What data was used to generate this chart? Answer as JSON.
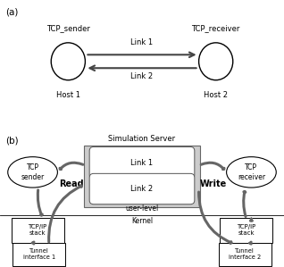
{
  "fig_width": 3.18,
  "fig_height": 2.99,
  "background_color": "#ffffff",
  "part_a": {
    "label": "(a)",
    "host1_label": "TCP_sender",
    "host2_label": "TCP_receiver",
    "bottom1_label": "Host 1",
    "bottom2_label": "Host 2",
    "link1_label": "Link 1",
    "link2_label": "Link 2"
  },
  "part_b": {
    "label": "(b)",
    "sim_server_label": "Simulation Server",
    "link1_label": "Link 1",
    "link2_label": "Link 2",
    "read_label": "Read",
    "write_label": "Write",
    "user_level_label": "user-level",
    "kernel_label": "Kernel",
    "tcp_sender_label": "TCP\nsender",
    "tcp_receiver_label": "TCP\nreceiver",
    "tcpip_stack1_label": "TCP/IP\nstack",
    "tcpip_stack2_label": "TCP/IP\nstack",
    "tunnel1_label": "Tunnel\ninterface 1",
    "tunnel2_label": "Tunnel\ninterface 2"
  }
}
